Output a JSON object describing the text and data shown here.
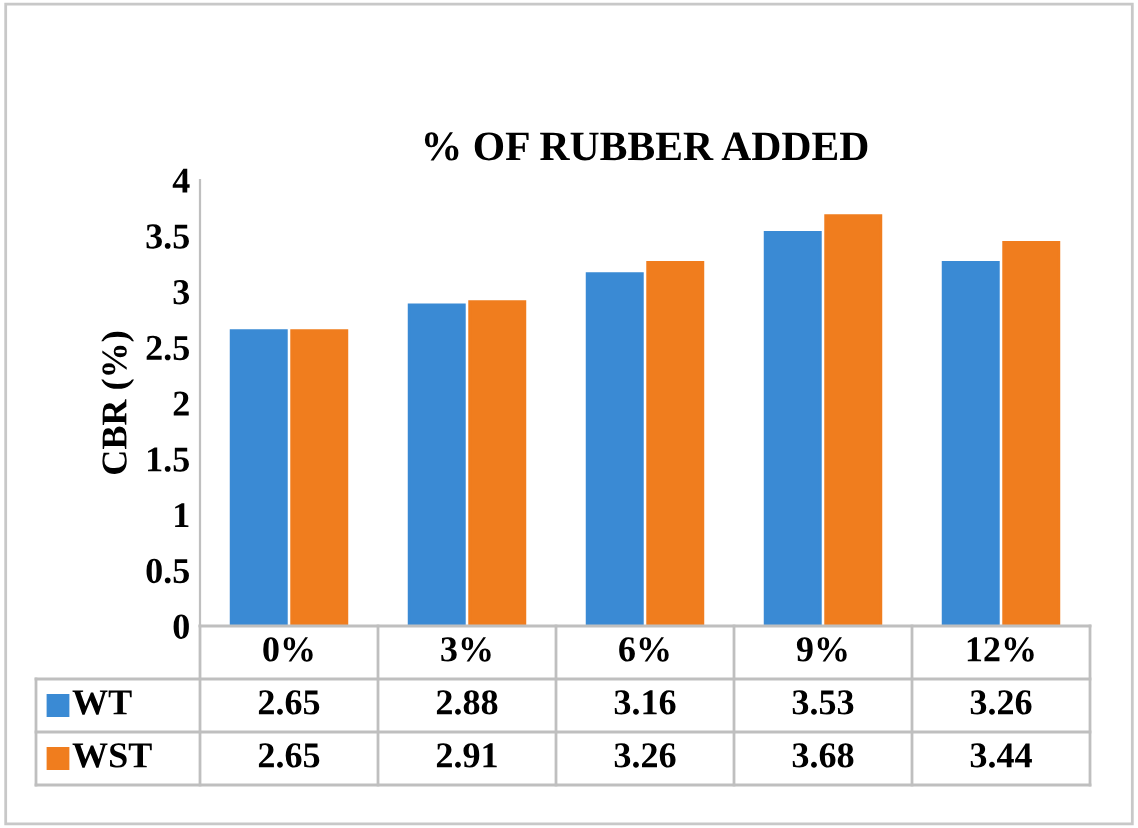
{
  "chart_data": {
    "type": "bar",
    "title": "% OF RUBBER ADDED",
    "ylabel": "CBR (%)",
    "categories": [
      "0%",
      "3%",
      "6%",
      "9%",
      "12%"
    ],
    "series": [
      {
        "name": "WT",
        "color": "#3a8ad4",
        "values": [
          2.65,
          2.88,
          3.16,
          3.53,
          3.26
        ]
      },
      {
        "name": "WST",
        "color": "#f07d1e",
        "values": [
          2.65,
          2.91,
          3.26,
          3.68,
          3.44
        ]
      }
    ],
    "ylim": [
      0,
      4
    ],
    "yticks": [
      0,
      0.5,
      1,
      1.5,
      2,
      2.5,
      3,
      3.5,
      4
    ],
    "grid": false,
    "legend": "bottom",
    "data_labels": true
  }
}
